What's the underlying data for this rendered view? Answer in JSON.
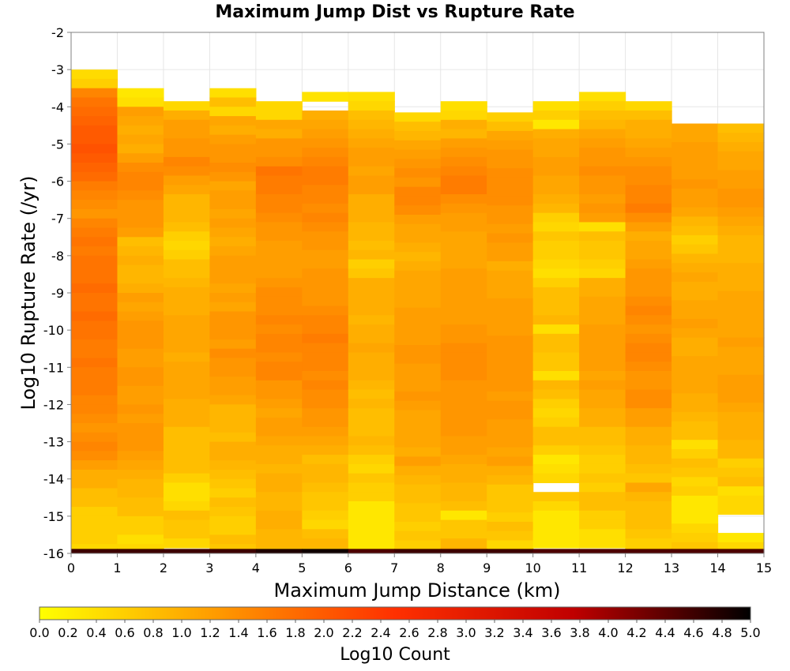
{
  "chart_data": {
    "type": "heatmap",
    "title": "Maximum Jump Dist vs Rupture Rate",
    "xlabel": "Maximum Jump Distance (km)",
    "ylabel": "Log10 Rupture Rate (/yr)",
    "colorbar_label": "Log10 Count",
    "xlim": [
      0,
      15
    ],
    "ylim": [
      -16,
      -2
    ],
    "x_ticks": [
      "0",
      "1",
      "2",
      "3",
      "4",
      "5",
      "6",
      "7",
      "8",
      "9",
      "10",
      "11",
      "12",
      "13",
      "14",
      "15"
    ],
    "y_ticks": [
      "-2",
      "-3",
      "-4",
      "-5",
      "-6",
      "-7",
      "-8",
      "-9",
      "-10",
      "-11",
      "-12",
      "-13",
      "-14",
      "-15",
      "-16"
    ],
    "color_range": [
      0,
      5
    ],
    "colorbar_ticks": [
      "0.0",
      "0.2",
      "0.4",
      "0.6",
      "0.8",
      "1.0",
      "1.2",
      "1.4",
      "1.6",
      "1.8",
      "2.0",
      "2.2",
      "2.4",
      "2.6",
      "2.8",
      "3.0",
      "3.2",
      "3.4",
      "3.6",
      "3.8",
      "4.0",
      "4.2",
      "4.4",
      "4.6",
      "4.8",
      "5.0"
    ],
    "colormap": [
      "#ffff00",
      "#ff9a00",
      "#ff3000",
      "#c00000",
      "#000000"
    ],
    "grid": true,
    "x_bin_width": 1,
    "y_bin_height": 0.25,
    "columns": [
      {
        "x": 0,
        "y_top": -3.0,
        "values": [
          0.45,
          0.6,
          1.5,
          1.7,
          1.8,
          1.9,
          2.0,
          2.0,
          2.1,
          2.0,
          1.9,
          1.8,
          1.6,
          1.5,
          1.4,
          1.3,
          1.5,
          1.6,
          1.7,
          1.6,
          1.7,
          1.7,
          1.7,
          1.8,
          1.7,
          1.7,
          1.8,
          1.7,
          1.7,
          1.6,
          1.6,
          1.7,
          1.6,
          1.6,
          1.6,
          1.5,
          1.5,
          1.4,
          1.3,
          1.4,
          1.5,
          1.4,
          1.2,
          1.0,
          1.0,
          0.8,
          0.8,
          0.6,
          0.6,
          0.6,
          0.6,
          0.5,
          0.5
        ]
      },
      {
        "x": 1,
        "y_top": -3.5,
        "values": [
          0.3,
          0.4,
          1.2,
          1.1,
          1.0,
          1.1,
          1.0,
          1.2,
          1.4,
          1.5,
          1.5,
          1.4,
          1.3,
          1.3,
          1.3,
          1.2,
          0.8,
          0.9,
          1.0,
          0.9,
          0.9,
          1.0,
          1.2,
          1.1,
          1.2,
          1.3,
          1.3,
          1.3,
          1.2,
          1.2,
          1.3,
          1.3,
          1.2,
          1.2,
          1.3,
          1.2,
          1.3,
          1.3,
          1.3,
          1.2,
          1.1,
          1.0,
          0.9,
          0.9,
          0.8,
          0.8,
          0.6,
          0.6,
          0.4,
          0.5,
          0.6,
          0.5,
          0.3
        ]
      },
      {
        "x": 2,
        "y_top": -3.85,
        "values": [
          0.5,
          1.0,
          1.2,
          1.2,
          1.3,
          1.3,
          1.5,
          1.4,
          1.2,
          1.1,
          0.9,
          0.9,
          0.9,
          0.8,
          0.6,
          0.5,
          0.6,
          0.8,
          0.8,
          0.9,
          1.0,
          1.0,
          1.0,
          1.1,
          1.1,
          1.1,
          1.1,
          1.0,
          1.1,
          1.1,
          1.1,
          1.1,
          1.0,
          1.0,
          1.0,
          0.8,
          0.8,
          0.8,
          0.8,
          0.8,
          0.6,
          0.4,
          0.4,
          0.5,
          0.8,
          0.7,
          0.7,
          0.5,
          null,
          0.3,
          0.5,
          0.5,
          0.3
        ]
      },
      {
        "x": 3,
        "y_top": -3.5,
        "values": [
          0.4,
          0.8,
          0.5,
          1.1,
          1.0,
          1.2,
          1.3,
          1.3,
          1.4,
          1.3,
          1.1,
          1.2,
          1.2,
          1.1,
          1.2,
          1.1,
          1.0,
          1.1,
          1.2,
          1.2,
          1.2,
          1.1,
          1.2,
          1.1,
          1.3,
          1.3,
          1.3,
          1.2,
          1.4,
          1.3,
          1.3,
          1.2,
          1.2,
          1.1,
          0.9,
          0.9,
          0.9,
          0.8,
          1.0,
          1.0,
          0.9,
          0.8,
          0.7,
          0.6,
          0.8,
          0.7,
          0.6,
          0.6,
          0.8,
          0.7,
          0.8,
          0.8,
          0.6
        ]
      },
      {
        "x": 4,
        "y_top": -3.85,
        "values": [
          0.5,
          0.5,
          1.1,
          1.0,
          1.3,
          1.3,
          1.4,
          1.7,
          1.6,
          1.6,
          1.5,
          1.5,
          1.4,
          1.3,
          1.3,
          1.2,
          1.2,
          1.2,
          1.2,
          1.3,
          1.4,
          1.4,
          1.4,
          1.5,
          1.4,
          1.5,
          1.5,
          1.4,
          1.5,
          1.5,
          1.3,
          1.3,
          1.2,
          1.1,
          1.2,
          1.2,
          1.1,
          1.0,
          1.0,
          0.9,
          1.0,
          1.0,
          0.9,
          0.9,
          1.0,
          1.0,
          0.9,
          0.9,
          0.8,
          0.8,
          0.8,
          0.8,
          0.8
        ]
      },
      {
        "x": 5,
        "y_top": -3.6,
        "values": [
          0.35,
          null,
          1.0,
          1.1,
          1.2,
          1.3,
          1.4,
          1.5,
          1.6,
          1.6,
          1.5,
          1.5,
          1.4,
          1.5,
          1.4,
          1.3,
          1.3,
          1.2,
          1.2,
          1.3,
          1.3,
          1.3,
          1.3,
          1.4,
          1.5,
          1.5,
          1.6,
          1.5,
          1.5,
          1.5,
          1.4,
          1.5,
          1.4,
          1.4,
          1.3,
          1.3,
          1.2,
          1.1,
          1.0,
          0.8,
          0.9,
          0.9,
          0.8,
          0.7,
          0.7,
          0.6,
          0.5,
          0.8,
          0.9,
          0.8,
          0.8,
          0.8,
          0.7
        ]
      },
      {
        "x": 6,
        "y_top": -3.6,
        "values": [
          0.4,
          0.5,
          0.8,
          0.9,
          1.0,
          1.1,
          1.2,
          1.2,
          1.1,
          1.2,
          1.2,
          1.0,
          1.0,
          1.0,
          0.9,
          0.9,
          0.8,
          0.9,
          0.6,
          0.7,
          1.0,
          1.0,
          1.0,
          1.0,
          0.9,
          1.0,
          1.0,
          1.1,
          1.0,
          1.0,
          1.0,
          0.9,
          0.8,
          0.9,
          0.8,
          0.8,
          0.8,
          0.9,
          0.8,
          0.6,
          0.5,
          0.7,
          0.6,
          0.6,
          0.3,
          0.3,
          0.3,
          0.3,
          0.3,
          0.3,
          null,
          null,
          null
        ]
      },
      {
        "x": 7,
        "y_top": -4.15,
        "values": [
          0.5,
          0.8,
          0.9,
          1.1,
          1.2,
          1.3,
          1.4,
          1.3,
          1.5,
          1.5,
          1.4,
          1.2,
          1.1,
          1.1,
          1.0,
          0.9,
          1.0,
          1.1,
          1.1,
          1.1,
          1.1,
          1.2,
          1.2,
          1.2,
          1.2,
          1.3,
          1.3,
          1.2,
          1.2,
          1.2,
          1.3,
          1.2,
          1.1,
          1.1,
          1.1,
          1.1,
          1.0,
          1.2,
          1.0,
          0.9,
          0.8,
          0.8,
          0.7,
          0.7,
          0.6,
          0.7,
          0.6,
          0.5,
          0.4,
          0.4,
          0.3
        ]
      },
      {
        "x": 8,
        "y_top": -3.85,
        "values": [
          0.4,
          0.5,
          1.0,
          0.9,
          1.2,
          1.3,
          1.4,
          1.5,
          1.6,
          1.6,
          1.4,
          1.3,
          1.2,
          1.2,
          1.1,
          1.1,
          1.1,
          1.1,
          1.2,
          1.2,
          1.2,
          1.2,
          1.2,
          1.2,
          1.3,
          1.3,
          1.4,
          1.4,
          1.4,
          1.4,
          1.3,
          1.3,
          1.3,
          1.3,
          1.3,
          1.3,
          1.2,
          1.2,
          1.1,
          1.0,
          1.0,
          0.9,
          0.9,
          0.8,
          0.3,
          0.7,
          0.7,
          0.9,
          1.0,
          1.0,
          0.8,
          0.8,
          0.8
        ]
      },
      {
        "x": 9,
        "y_top": -4.15,
        "values": [
          0.6,
          0.8,
          1.1,
          1.2,
          1.3,
          1.3,
          1.4,
          1.4,
          1.4,
          1.4,
          1.3,
          1.3,
          1.2,
          1.3,
          1.2,
          1.2,
          1.0,
          1.1,
          1.1,
          1.1,
          1.2,
          1.2,
          1.2,
          1.2,
          1.3,
          1.3,
          1.3,
          1.3,
          1.3,
          1.3,
          1.2,
          1.3,
          1.3,
          1.2,
          1.2,
          1.2,
          1.1,
          1.2,
          1.0,
          0.9,
          0.7,
          0.7,
          0.7,
          0.6,
          0.8,
          0.7,
          0.5,
          0.5,
          0.5,
          0.6,
          0.6
        ]
      },
      {
        "x": 10,
        "y_top": -3.85,
        "values": [
          0.4,
          0.6,
          0.3,
          1.0,
          1.1,
          1.1,
          1.2,
          1.2,
          1.1,
          1.1,
          1.0,
          0.9,
          0.6,
          0.5,
          0.7,
          0.6,
          0.6,
          0.5,
          0.4,
          0.6,
          0.8,
          0.8,
          0.8,
          0.9,
          0.4,
          0.8,
          0.8,
          0.7,
          0.7,
          0.4,
          0.9,
          0.8,
          0.6,
          0.5,
          0.6,
          0.8,
          0.8,
          0.6,
          0.3,
          0.4,
          0.5,
          null,
          0.7,
          0.5,
          0.3,
          0.3,
          0.3,
          0.3,
          null,
          null,
          null,
          null,
          null
        ]
      },
      {
        "x": 11,
        "y_top": -3.6,
        "values": [
          0.4,
          0.6,
          0.8,
          0.9,
          1.1,
          1.2,
          1.3,
          1.3,
          1.4,
          1.3,
          1.3,
          1.2,
          1.3,
          1.2,
          0.4,
          0.8,
          0.7,
          0.7,
          0.6,
          0.5,
          1.0,
          1.0,
          1.1,
          1.1,
          1.1,
          1.2,
          1.2,
          1.2,
          1.2,
          1.2,
          1.1,
          1.2,
          1.1,
          1.1,
          1.0,
          1.0,
          0.8,
          0.8,
          0.7,
          0.6,
          0.6,
          0.7,
          0.6,
          0.8,
          0.8,
          0.6,
          0.6,
          0.4,
          0.4,
          null,
          null,
          null,
          null
        ]
      },
      {
        "x": 12,
        "y_top": -3.85,
        "values": [
          0.5,
          0.8,
          1.0,
          1.0,
          1.1,
          1.2,
          1.3,
          1.4,
          1.4,
          1.5,
          1.5,
          1.6,
          1.4,
          1.2,
          1.0,
          1.1,
          1.1,
          1.2,
          1.3,
          1.3,
          1.3,
          1.4,
          1.5,
          1.4,
          1.3,
          1.4,
          1.5,
          1.5,
          1.4,
          1.3,
          1.3,
          1.4,
          1.4,
          1.2,
          1.2,
          1.0,
          1.0,
          0.9,
          0.9,
          0.8,
          0.7,
          1.1,
          0.9,
          0.8,
          0.8,
          0.8,
          0.7,
          0.6,
          0.6,
          0.8,
          0.6,
          0.6,
          0.5
        ]
      },
      {
        "x": 13,
        "y_top": -4.45,
        "values": [
          1.1,
          1.1,
          1.2,
          1.2,
          1.2,
          1.2,
          1.3,
          1.2,
          1.2,
          1.1,
          0.9,
          0.8,
          0.6,
          0.7,
          0.9,
          1.0,
          1.1,
          1.0,
          1.0,
          1.1,
          1.1,
          1.2,
          1.1,
          1.0,
          1.0,
          1.1,
          1.1,
          1.1,
          1.1,
          1.0,
          1.0,
          0.9,
          0.8,
          0.8,
          0.4,
          0.6,
          0.8,
          0.7,
          0.5,
          0.6,
          0.3,
          0.3,
          0.3,
          0.5,
          0.6,
          0.7
        ]
      },
      {
        "x": 14,
        "y_top": -4.45,
        "values": [
          0.8,
          0.9,
          1.0,
          1.1,
          1.1,
          1.2,
          1.2,
          1.3,
          1.3,
          1.2,
          1.1,
          1.0,
          0.9,
          0.9,
          0.9,
          1.0,
          1.0,
          1.0,
          1.1,
          1.1,
          1.1,
          1.1,
          1.1,
          1.2,
          1.1,
          1.1,
          1.1,
          1.2,
          1.2,
          1.2,
          1.1,
          1.0,
          1.0,
          1.0,
          0.9,
          0.9,
          0.6,
          0.7,
          0.8,
          0.4,
          0.5,
          0.5,
          null,
          null,
          0.3,
          0.5,
          0.6
        ]
      }
    ],
    "bottom_row": {
      "y": -16,
      "height": 0.12,
      "values": [
        4.6,
        4.6,
        4.6,
        4.6,
        4.8,
        4.9,
        4.5,
        4.6,
        4.6,
        4.6,
        4.5,
        4.5,
        4.5,
        4.5,
        4.5
      ]
    }
  }
}
